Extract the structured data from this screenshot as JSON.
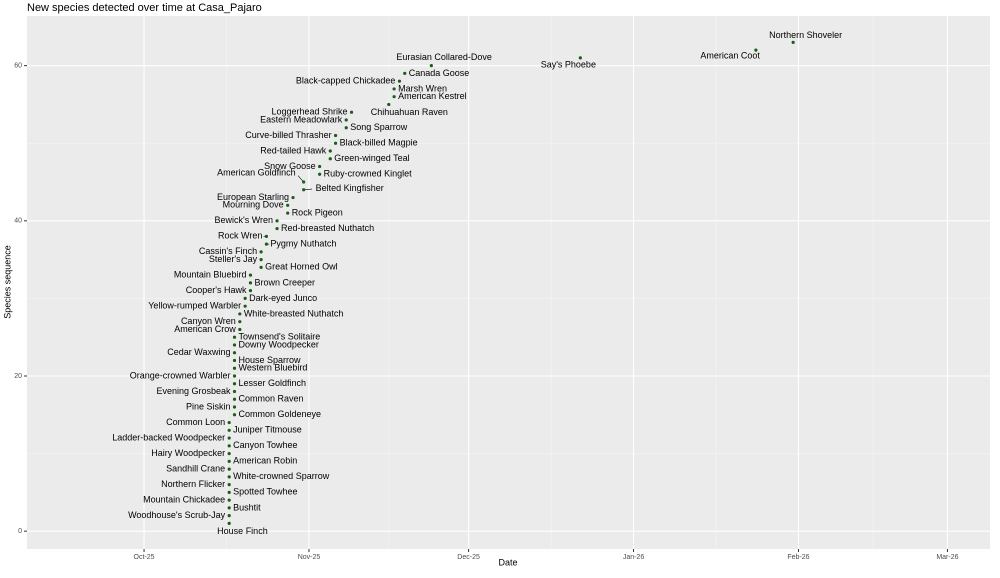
{
  "chart_data": {
    "type": "scatter",
    "title": "New species detected over time at Casa_Pajaro",
    "x_label": "Date",
    "y_label": "Species sequence",
    "color": "#1a5e1a",
    "grid": true,
    "xlim": [
      "2025-09-09",
      "2026-03-09"
    ],
    "xticks": [
      {
        "value": "2025-10-01",
        "label": "Oct-25"
      },
      {
        "value": "2025-11-01",
        "label": "Nov-25"
      },
      {
        "value": "2025-12-01",
        "label": "Dec-25"
      },
      {
        "value": "2026-01-01",
        "label": "Jan-26"
      },
      {
        "value": "2026-02-01",
        "label": "Feb-26"
      },
      {
        "value": "2026-03-01",
        "label": "Mar-26"
      }
    ],
    "ylim": [
      -2.3,
      66.4
    ],
    "yticks": [
      0,
      20,
      40,
      60
    ],
    "labels": [
      "House Finch",
      "Woodhouse's Scrub-Jay",
      "Bushtit",
      "Mountain Chickadee",
      "Spotted Towhee",
      "Northern Flicker",
      "White-crowned Sparrow",
      "Sandhill Crane",
      "American Robin",
      "Hairy Woodpecker",
      "Canyon Towhee",
      "Ladder-backed Woodpecker",
      "Juniper Titmouse",
      "Common Loon",
      "Common Goldeneye",
      "Pine Siskin",
      "Common Raven",
      "Evening Grosbeak",
      "Lesser Goldfinch",
      "Orange-crowned Warbler",
      "Western Bluebird",
      "House Sparrow",
      "Cedar Waxwing",
      "Downy Woodpecker",
      "Townsend's Solitaire",
      "American Crow",
      "Canyon Wren",
      "White-breasted Nuthatch",
      "Yellow-rumped Warbler",
      "Dark-eyed Junco",
      "Cooper's Hawk",
      "Brown Creeper",
      "Mountain Bluebird",
      "Great Horned Owl",
      "Steller's Jay",
      "Cassin's Finch",
      "Pygmy Nuthatch",
      "Rock Wren",
      "Red-breasted Nuthatch",
      "Bewick's Wren",
      "Rock Pigeon",
      "Mourning Dove",
      "European Starling",
      "Belted Kingfisher",
      "American Goldfinch",
      "Ruby-crowned Kinglet",
      "Snow Goose",
      "Green-winged Teal",
      "Red-tailed Hawk",
      "Black-billed Magpie",
      "Curve-billed Thrasher",
      "Song Sparrow",
      "Eastern Meadowlark",
      "Loggerhead Shrike",
      "Chihuahuan Raven",
      "American Kestrel",
      "Marsh Wren",
      "Black-capped Chickadee",
      "Canada Goose",
      "Eurasian Collared-Dove",
      "Say's Phoebe",
      "American Coot",
      "Northern Shoveler"
    ],
    "x": [
      "2025-10-17",
      "2025-10-17",
      "2025-10-17",
      "2025-10-17",
      "2025-10-17",
      "2025-10-17",
      "2025-10-17",
      "2025-10-17",
      "2025-10-17",
      "2025-10-17",
      "2025-10-17",
      "2025-10-17",
      "2025-10-17",
      "2025-10-17",
      "2025-10-18",
      "2025-10-18",
      "2025-10-18",
      "2025-10-18",
      "2025-10-18",
      "2025-10-18",
      "2025-10-18",
      "2025-10-18",
      "2025-10-18",
      "2025-10-18",
      "2025-10-18",
      "2025-10-19",
      "2025-10-19",
      "2025-10-19",
      "2025-10-20",
      "2025-10-20",
      "2025-10-21",
      "2025-10-21",
      "2025-10-21",
      "2025-10-23",
      "2025-10-23",
      "2025-10-23",
      "2025-10-24",
      "2025-10-24",
      "2025-10-26",
      "2025-10-26",
      "2025-10-28",
      "2025-10-28",
      "2025-10-29",
      "2025-10-31",
      "2025-10-31",
      "2025-11-03",
      "2025-11-03",
      "2025-11-05",
      "2025-11-05",
      "2025-11-06",
      "2025-11-06",
      "2025-11-08",
      "2025-11-08",
      "2025-11-09",
      "2025-11-16",
      "2025-11-17",
      "2025-11-17",
      "2025-11-18",
      "2025-11-19",
      "2025-11-24",
      "2025-12-22",
      "2026-01-24",
      "2026-01-31"
    ],
    "values": [
      1,
      2,
      3,
      4,
      5,
      6,
      7,
      8,
      9,
      10,
      11,
      12,
      13,
      14,
      15,
      16,
      17,
      18,
      19,
      20,
      21,
      22,
      23,
      24,
      25,
      26,
      27,
      28,
      29,
      30,
      31,
      32,
      33,
      34,
      35,
      36,
      37,
      38,
      39,
      40,
      41,
      42,
      43,
      44,
      45,
      46,
      47,
      48,
      49,
      50,
      51,
      52,
      53,
      54,
      55,
      56,
      57,
      58,
      59,
      60,
      61,
      62,
      63
    ]
  }
}
